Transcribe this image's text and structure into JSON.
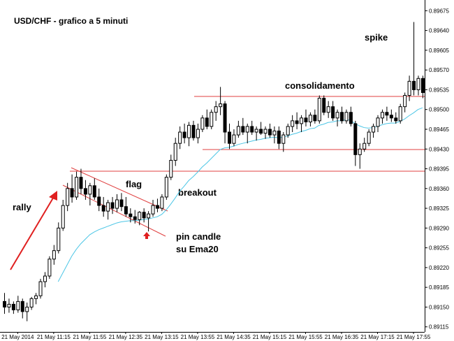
{
  "chart_data": {
    "type": "candlestick",
    "title": "USD/CHF - grafico a 5 minuti",
    "annotations": [
      "spike",
      "consolidamento",
      "flag",
      "breakout",
      "rally",
      "pin candle",
      "su Ema20"
    ],
    "ylim": [
      0.89106,
      0.89694
    ],
    "yticks": [
      0.89675,
      {
        "value": 0.8964,
        "label": "0.89640"
      },
      0.89605,
      {
        "value": 0.8957,
        "label": "0.89570"
      },
      0.89535,
      {
        "value": 0.895,
        "label": "0.89500"
      },
      0.89465,
      {
        "value": 0.8943,
        "label": "0.89430"
      },
      0.89395,
      {
        "value": 0.8936,
        "label": "0.89360"
      },
      0.89325,
      {
        "value": 0.8929,
        "label": "0.89290"
      },
      0.89255,
      {
        "value": 0.8922,
        "label": "0.89220"
      },
      0.89185,
      {
        "value": 0.8915,
        "label": "0.89150"
      },
      0.89115
    ],
    "categories": [
      null,
      null,
      null,
      "21 May 2014",
      null,
      null,
      null,
      null,
      null,
      null,
      null,
      "21 May 11:15",
      null,
      null,
      null,
      null,
      null,
      null,
      null,
      "21 May 11:55",
      null,
      null,
      null,
      null,
      null,
      null,
      null,
      "21 May 12:35",
      null,
      null,
      null,
      null,
      null,
      null,
      null,
      "21 May 13:15",
      null,
      null,
      null,
      null,
      null,
      null,
      null,
      "21 May 13:55",
      null,
      null,
      null,
      null,
      null,
      null,
      null,
      "21 May 14:35",
      null,
      null,
      null,
      null,
      null,
      null,
      null,
      "21 May 15:15",
      null,
      null,
      null,
      null,
      null,
      null,
      null,
      "21 May 15:55",
      null,
      null,
      null,
      null,
      null,
      null,
      null,
      "21 May 16:35",
      null,
      null,
      null,
      null,
      null,
      null,
      null,
      "21 May 17:15",
      null,
      null,
      null,
      null,
      null,
      null,
      null,
      "21 May 17:55",
      null,
      null
    ],
    "ohlc": [
      [
        0.8916,
        0.89175,
        0.89138,
        0.8915
      ],
      [
        0.8915,
        0.89165,
        0.8914,
        0.89155
      ],
      [
        0.89155,
        0.8916,
        0.89138,
        0.89145
      ],
      [
        0.89145,
        0.8917,
        0.8914,
        0.8916
      ],
      [
        0.8916,
        0.89165,
        0.8913,
        0.89142
      ],
      [
        0.89142,
        0.89158,
        0.89125,
        0.8915
      ],
      [
        0.8915,
        0.89168,
        0.89145,
        0.89165
      ],
      [
        0.89165,
        0.89175,
        0.89155,
        0.8917
      ],
      [
        0.8917,
        0.892,
        0.89165,
        0.89195
      ],
      [
        0.89195,
        0.89212,
        0.89185,
        0.89205
      ],
      [
        0.89205,
        0.8924,
        0.892,
        0.89235
      ],
      [
        0.89235,
        0.8926,
        0.89225,
        0.8925
      ],
      [
        0.8925,
        0.893,
        0.89245,
        0.8929
      ],
      [
        0.8929,
        0.8934,
        0.89285,
        0.8933
      ],
      [
        0.8933,
        0.8937,
        0.8932,
        0.8936
      ],
      [
        0.8936,
        0.89385,
        0.89335,
        0.89345
      ],
      [
        0.89345,
        0.8939,
        0.8934,
        0.8938
      ],
      [
        0.8938,
        0.89395,
        0.8935,
        0.8936
      ],
      [
        0.8936,
        0.89375,
        0.8934,
        0.8935
      ],
      [
        0.8935,
        0.8937,
        0.8933,
        0.89365
      ],
      [
        0.89365,
        0.89378,
        0.8934,
        0.89345
      ],
      [
        0.89345,
        0.8936,
        0.8932,
        0.8933
      ],
      [
        0.8933,
        0.89345,
        0.8931,
        0.8932
      ],
      [
        0.8932,
        0.8934,
        0.89305,
        0.89335
      ],
      [
        0.89335,
        0.89345,
        0.89315,
        0.89325
      ],
      [
        0.89325,
        0.8935,
        0.89318,
        0.8934
      ],
      [
        0.8934,
        0.89352,
        0.8932,
        0.89328
      ],
      [
        0.89328,
        0.89345,
        0.8931,
        0.89315
      ],
      [
        0.89315,
        0.89325,
        0.893,
        0.8931
      ],
      [
        0.8931,
        0.89322,
        0.89298,
        0.89305
      ],
      [
        0.89305,
        0.8932,
        0.89295,
        0.89318
      ],
      [
        0.89318,
        0.89325,
        0.893,
        0.89308
      ],
      [
        0.89308,
        0.8932,
        0.89284,
        0.89315
      ],
      [
        0.89315,
        0.8934,
        0.8931,
        0.8933
      ],
      [
        0.8933,
        0.89342,
        0.89318,
        0.89325
      ],
      [
        0.89325,
        0.8935,
        0.8932,
        0.89345
      ],
      [
        0.89345,
        0.89385,
        0.8934,
        0.8938
      ],
      [
        0.8938,
        0.8942,
        0.89375,
        0.8941
      ],
      [
        0.8941,
        0.8945,
        0.894,
        0.8944
      ],
      [
        0.8944,
        0.8947,
        0.8943,
        0.8946
      ],
      [
        0.8946,
        0.89475,
        0.8944,
        0.8945
      ],
      [
        0.8945,
        0.89478,
        0.89435,
        0.89472
      ],
      [
        0.89472,
        0.8948,
        0.89445,
        0.8945
      ],
      [
        0.8945,
        0.89475,
        0.8944,
        0.89465
      ],
      [
        0.89465,
        0.8949,
        0.8946,
        0.89485
      ],
      [
        0.89485,
        0.895,
        0.89465,
        0.8947
      ],
      [
        0.8947,
        0.895,
        0.89465,
        0.89495
      ],
      [
        0.89495,
        0.89515,
        0.8948,
        0.89505
      ],
      [
        0.89505,
        0.8954,
        0.8949,
        0.8951
      ],
      [
        0.8951,
        0.89515,
        0.8944,
        0.8946
      ],
      [
        0.8946,
        0.89475,
        0.8943,
        0.8944
      ],
      [
        0.8944,
        0.89465,
        0.89435,
        0.89455
      ],
      [
        0.89455,
        0.8948,
        0.8945,
        0.8947
      ],
      [
        0.8947,
        0.89485,
        0.89455,
        0.8946
      ],
      [
        0.8946,
        0.89475,
        0.8944,
        0.8947
      ],
      [
        0.8947,
        0.8948,
        0.89455,
        0.8946
      ],
      [
        0.8946,
        0.8947,
        0.89445,
        0.89465
      ],
      [
        0.89465,
        0.89478,
        0.89455,
        0.89458
      ],
      [
        0.89458,
        0.8947,
        0.89448,
        0.89465
      ],
      [
        0.89465,
        0.89475,
        0.8945,
        0.89455
      ],
      [
        0.89455,
        0.8947,
        0.8944,
        0.89462
      ],
      [
        0.89462,
        0.8947,
        0.8943,
        0.8944
      ],
      [
        0.8944,
        0.8946,
        0.89425,
        0.89455
      ],
      [
        0.89455,
        0.89475,
        0.8945,
        0.8947
      ],
      [
        0.8947,
        0.8949,
        0.8946,
        0.8948
      ],
      [
        0.8948,
        0.89495,
        0.89465,
        0.89475
      ],
      [
        0.89475,
        0.8949,
        0.8946,
        0.89485
      ],
      [
        0.89485,
        0.895,
        0.8947,
        0.89478
      ],
      [
        0.89478,
        0.89495,
        0.8947,
        0.8949
      ],
      [
        0.8949,
        0.895,
        0.89475,
        0.8948
      ],
      [
        0.8948,
        0.89525,
        0.89475,
        0.8952
      ],
      [
        0.8952,
        0.89525,
        0.8949,
        0.89495
      ],
      [
        0.89495,
        0.89515,
        0.89485,
        0.89505
      ],
      [
        0.89505,
        0.89515,
        0.8948,
        0.89485
      ],
      [
        0.89485,
        0.895,
        0.8947,
        0.89495
      ],
      [
        0.89495,
        0.89505,
        0.89475,
        0.8948
      ],
      [
        0.8948,
        0.895,
        0.89475,
        0.89495
      ],
      [
        0.89495,
        0.89505,
        0.8947,
        0.89475
      ],
      [
        0.89475,
        0.8948,
        0.894,
        0.8942
      ],
      [
        0.8942,
        0.8944,
        0.89395,
        0.8943
      ],
      [
        0.8943,
        0.8945,
        0.89425,
        0.8944
      ],
      [
        0.8944,
        0.89465,
        0.89435,
        0.8946
      ],
      [
        0.8946,
        0.89475,
        0.8945,
        0.8947
      ],
      [
        0.8947,
        0.8949,
        0.8946,
        0.89485
      ],
      [
        0.89485,
        0.895,
        0.89475,
        0.89495
      ],
      [
        0.89495,
        0.89505,
        0.8948,
        0.8949
      ],
      [
        0.8949,
        0.895,
        0.89478,
        0.89485
      ],
      [
        0.89485,
        0.89495,
        0.89475,
        0.8948
      ],
      [
        0.8948,
        0.8951,
        0.89475,
        0.89505
      ],
      [
        0.89505,
        0.8953,
        0.89495,
        0.89525
      ],
      [
        0.89525,
        0.8956,
        0.89515,
        0.8955
      ],
      [
        0.8955,
        0.89655,
        0.89525,
        0.89535
      ],
      [
        0.89535,
        0.8956,
        0.89525,
        0.89555
      ],
      [
        0.89555,
        0.8956,
        0.8952,
        0.8953
      ]
    ],
    "ema": [
      null,
      null,
      null,
      null,
      null,
      null,
      null,
      null,
      null,
      null,
      null,
      null,
      0.89195,
      0.8921,
      0.89225,
      0.8924,
      0.89252,
      0.89262,
      0.8927,
      0.89278,
      0.89283,
      0.89287,
      0.8929,
      0.89293,
      0.89296,
      0.89299,
      0.89301,
      0.89302,
      0.89303,
      0.89303,
      0.89304,
      0.89305,
      0.89306,
      0.89308,
      0.8931,
      0.89314,
      0.89322,
      0.89332,
      0.89343,
      0.89355,
      0.89364,
      0.89374,
      0.89381,
      0.89389,
      0.89398,
      0.89405,
      0.89413,
      0.89421,
      0.89429,
      0.89432,
      0.89433,
      0.89435,
      0.89438,
      0.8944,
      0.89442,
      0.89444,
      0.89446,
      0.89447,
      0.89449,
      0.8945,
      0.89451,
      0.8945,
      0.89451,
      0.89453,
      0.89456,
      0.89458,
      0.89461,
      0.89463,
      0.89466,
      0.89467,
      0.89472,
      0.89474,
      0.89477,
      0.89478,
      0.8948,
      0.8948,
      0.89482,
      0.89481,
      0.89475,
      0.89471,
      0.89468,
      0.89467,
      0.89468,
      0.8947,
      0.89473,
      0.89475,
      0.89476,
      0.89476,
      0.89479,
      0.89483,
      0.89489,
      0.89494,
      0.895,
      0.89503
    ],
    "ema_color": "#4cc6e6",
    "up_color": "#ffffff",
    "down_color": "#000000"
  }
}
